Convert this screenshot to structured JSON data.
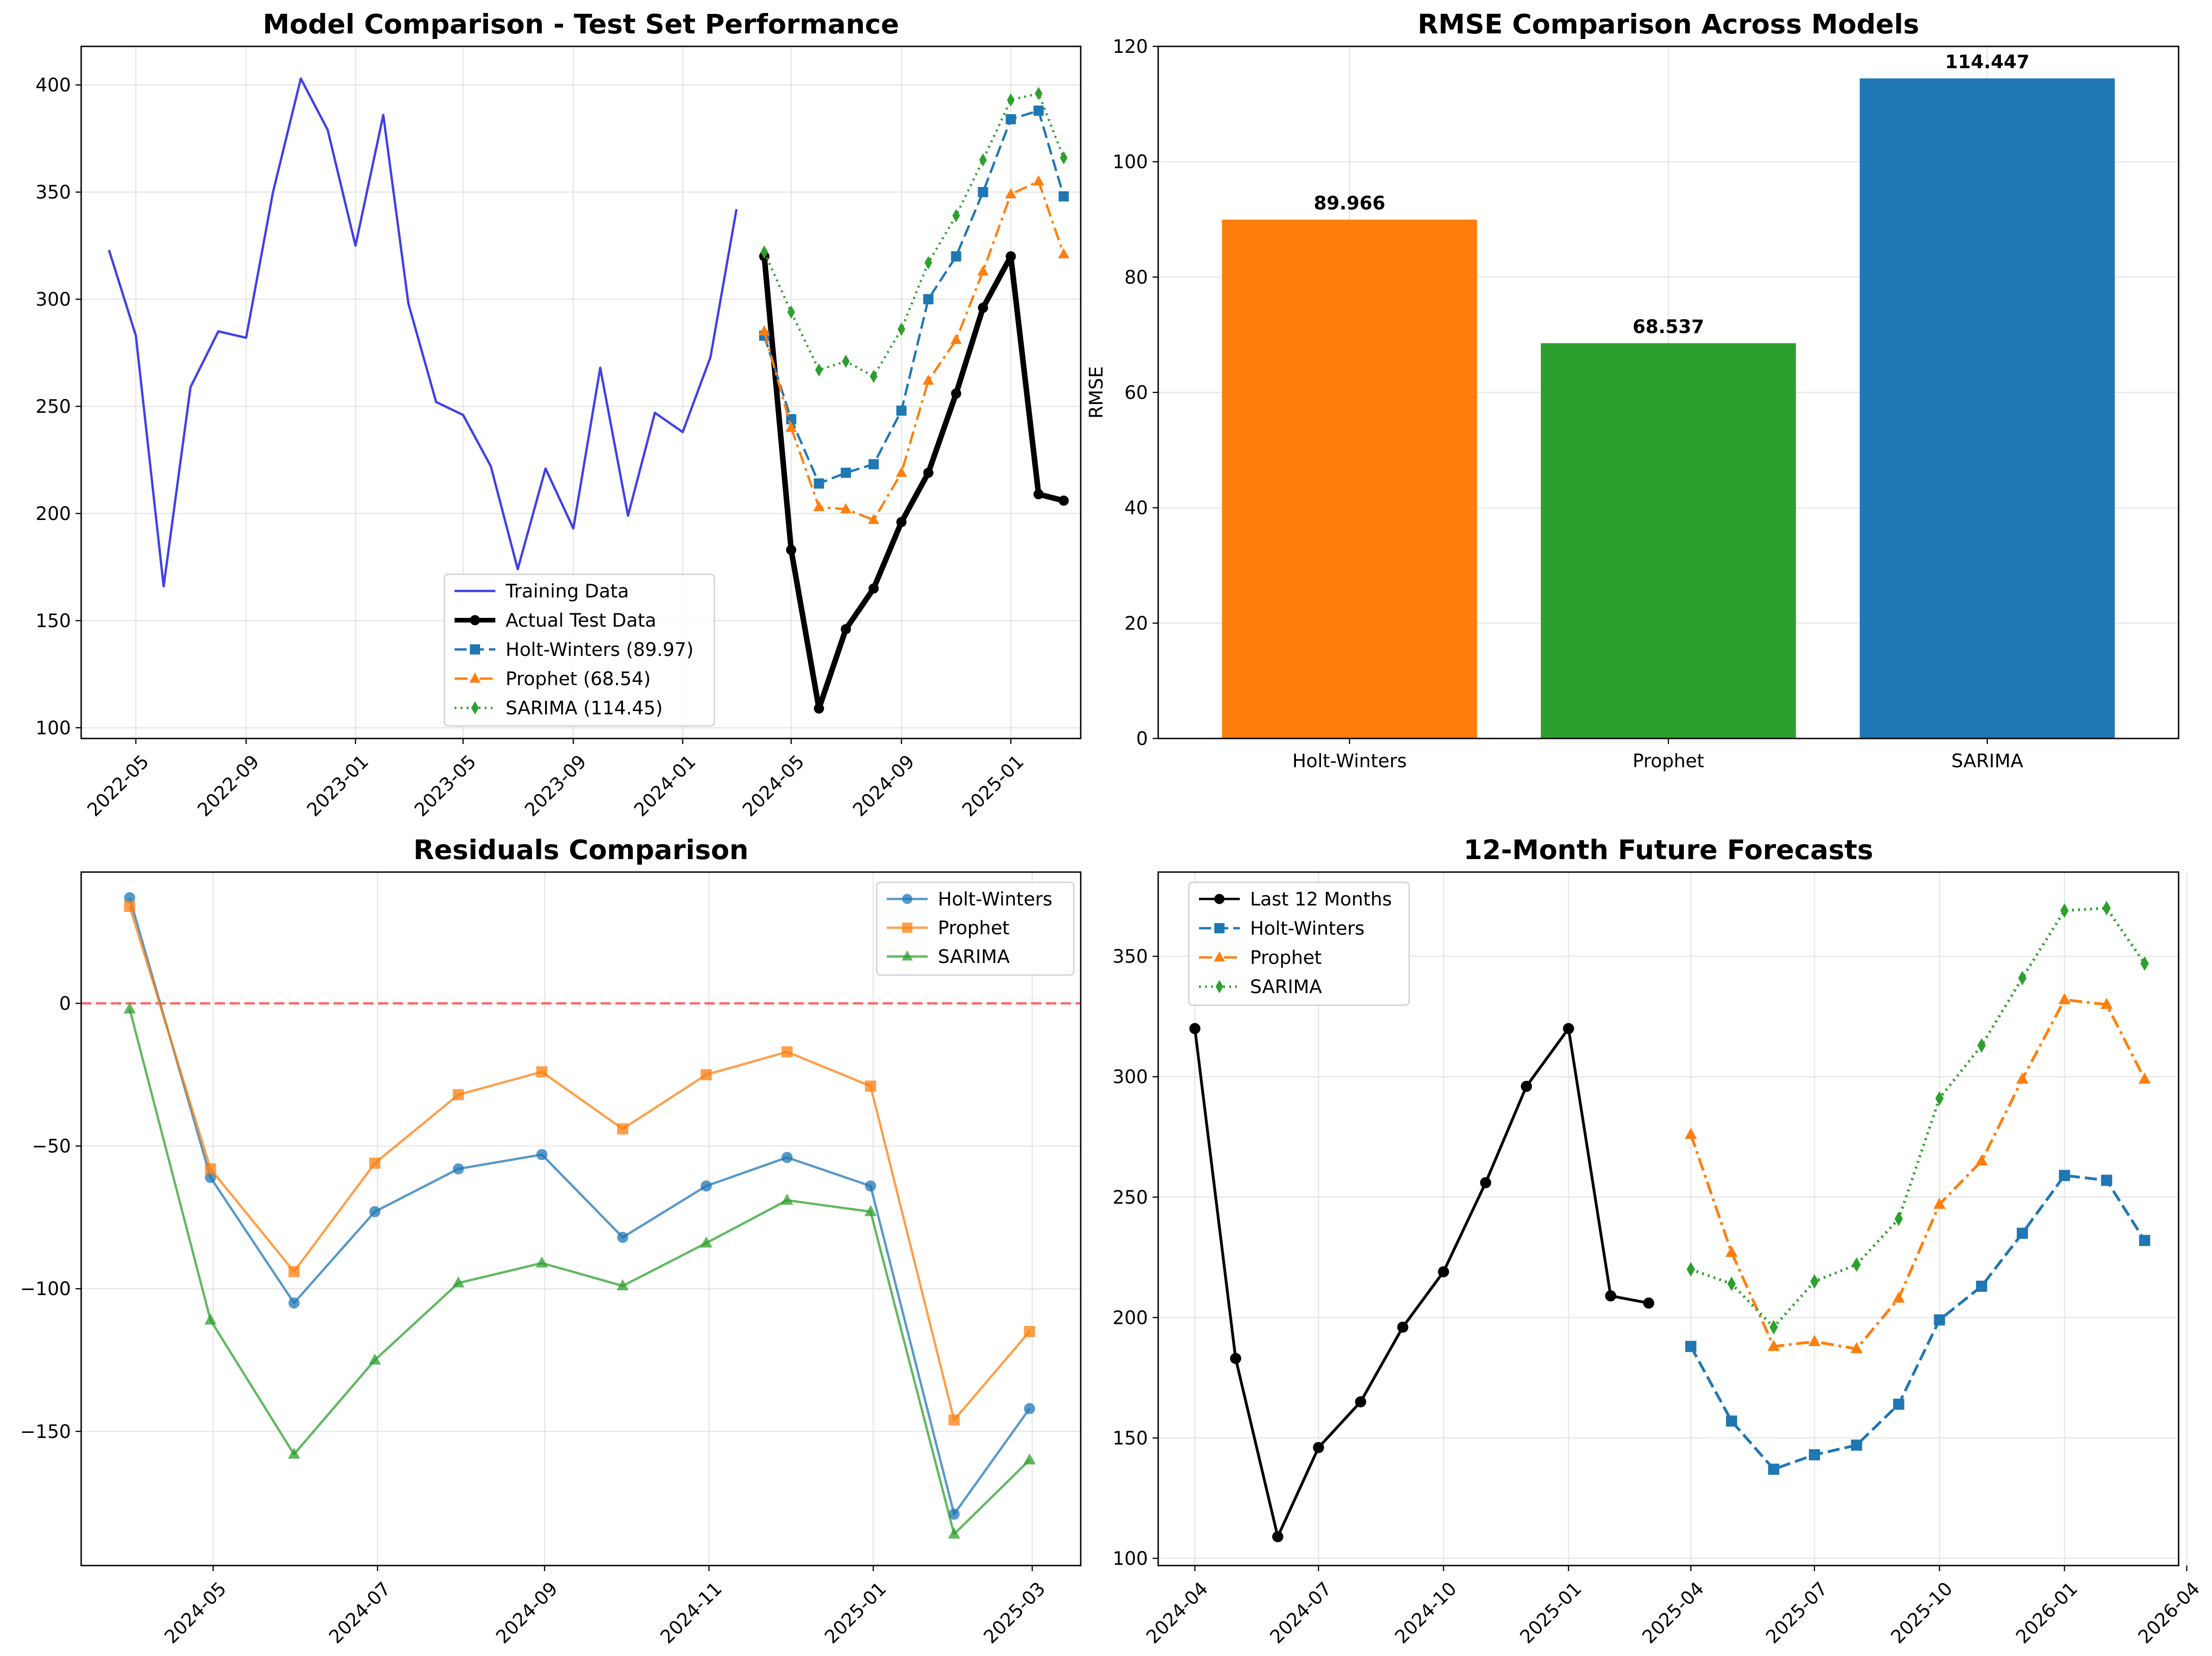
{
  "colors": {
    "training": "#4040e8",
    "actual": "#000000",
    "holt_winters": "#1f77b4",
    "prophet": "#ff7f0e",
    "sarima": "#2ca02c",
    "zero_line": "#ff4d4d",
    "grid": "#e6e6e6"
  },
  "chart_data": [
    {
      "type": "line",
      "title": "Model Comparison - Test Set Performance",
      "xlabel": "",
      "ylabel": "",
      "x_axis": "date",
      "xlim": [
        "2022-03-01",
        "2025-03-20"
      ],
      "ylim": [
        95,
        418
      ],
      "y_ticks": [
        100,
        150,
        200,
        250,
        300,
        350,
        400
      ],
      "x_ticks": [
        "2022-05",
        "2022-09",
        "2023-01",
        "2023-05",
        "2023-09",
        "2024-01",
        "2024-05",
        "2024-09",
        "2025-01"
      ],
      "grid": true,
      "legend_position": "lower-center",
      "series": [
        {
          "name": "Training Data",
          "style": "solid",
          "marker": "none",
          "color_key": "training",
          "x": [
            "2022-04",
            "2022-05",
            "2022-06",
            "2022-07",
            "2022-08",
            "2022-09",
            "2022-10",
            "2022-11",
            "2022-12",
            "2023-01",
            "2023-02",
            "2023-03",
            "2023-04",
            "2023-05",
            "2023-06",
            "2023-07",
            "2023-08",
            "2023-09",
            "2023-10",
            "2023-11",
            "2023-12",
            "2024-01",
            "2024-02",
            "2024-03"
          ],
          "values": [
            323,
            283,
            166,
            259,
            285,
            282,
            350,
            403,
            379,
            325,
            386,
            298,
            252,
            246,
            222,
            174,
            221,
            193,
            268,
            199,
            247,
            238,
            273,
            342
          ]
        },
        {
          "name": "Actual Test Data",
          "style": "solid-thick",
          "marker": "circle",
          "color_key": "actual",
          "x": [
            "2024-04",
            "2024-05",
            "2024-06",
            "2024-07",
            "2024-08",
            "2024-09",
            "2024-10",
            "2024-11",
            "2024-12",
            "2025-01",
            "2025-02",
            "2025-03"
          ],
          "values": [
            320,
            183,
            109,
            146,
            165,
            196,
            219,
            256,
            296,
            320,
            209,
            206
          ]
        },
        {
          "name": "Holt-Winters (89.97)",
          "style": "dashed",
          "marker": "square",
          "color_key": "holt_winters",
          "x": [
            "2024-04",
            "2024-05",
            "2024-06",
            "2024-07",
            "2024-08",
            "2024-09",
            "2024-10",
            "2024-11",
            "2024-12",
            "2025-01",
            "2025-02",
            "2025-03"
          ],
          "values": [
            283,
            244,
            214,
            219,
            223,
            248,
            300,
            320,
            350,
            384,
            388,
            348
          ]
        },
        {
          "name": "Prophet (68.54)",
          "style": "dashdot",
          "marker": "triangle",
          "color_key": "prophet",
          "x": [
            "2024-04",
            "2024-05",
            "2024-06",
            "2024-07",
            "2024-08",
            "2024-09",
            "2024-10",
            "2024-11",
            "2024-12",
            "2025-01",
            "2025-02",
            "2025-03"
          ],
          "values": [
            285,
            240,
            203,
            202,
            197,
            219,
            262,
            281,
            313,
            349,
            355,
            321
          ]
        },
        {
          "name": "SARIMA (114.45)",
          "style": "dotted",
          "marker": "diamond",
          "color_key": "sarima",
          "x": [
            "2024-04",
            "2024-05",
            "2024-06",
            "2024-07",
            "2024-08",
            "2024-09",
            "2024-10",
            "2024-11",
            "2024-12",
            "2025-01",
            "2025-02",
            "2025-03"
          ],
          "values": [
            322,
            294,
            267,
            271,
            264,
            286,
            317,
            339,
            365,
            393,
            396,
            366
          ]
        }
      ]
    },
    {
      "type": "bar",
      "title": "RMSE Comparison Across Models",
      "xlabel": "",
      "ylabel": "RMSE",
      "ylim": [
        0,
        120
      ],
      "y_ticks": [
        0,
        20,
        40,
        60,
        80,
        100,
        120
      ],
      "grid": true,
      "categories": [
        "Holt-Winters",
        "Prophet",
        "SARIMA"
      ],
      "values": [
        89.966,
        68.537,
        114.447
      ],
      "value_labels": [
        "89.966",
        "68.537",
        "114.447"
      ],
      "bar_color_keys": [
        "prophet",
        "sarima",
        "holt_winters"
      ]
    },
    {
      "type": "line",
      "title": "Residuals Comparison",
      "xlabel": "",
      "ylabel": "",
      "x_axis": "date",
      "xlim": [
        "2024-03-13",
        "2025-03-19"
      ],
      "ylim": [
        -197,
        46
      ],
      "y_ticks": [
        -150,
        -100,
        -50,
        0
      ],
      "x_ticks": [
        "2024-05",
        "2024-07",
        "2024-09",
        "2024-11",
        "2025-01",
        "2025-03"
      ],
      "grid": true,
      "legend_position": "upper-right",
      "reference_line": 0,
      "series": [
        {
          "name": "Holt-Winters",
          "marker": "circle",
          "color_key": "holt_winters",
          "x": [
            "2024-03-31",
            "2024-04-30",
            "2024-05-31",
            "2024-06-30",
            "2024-07-31",
            "2024-08-31",
            "2024-09-30",
            "2024-10-31",
            "2024-11-30",
            "2024-12-31",
            "2025-01-31",
            "2025-02-28"
          ],
          "values": [
            37,
            -61,
            -105,
            -73,
            -58,
            -53,
            -82,
            -64,
            -54,
            -64,
            -179,
            -142
          ]
        },
        {
          "name": "Prophet",
          "marker": "square",
          "color_key": "prophet",
          "x": [
            "2024-03-31",
            "2024-04-30",
            "2024-05-31",
            "2024-06-30",
            "2024-07-31",
            "2024-08-31",
            "2024-09-30",
            "2024-10-31",
            "2024-11-30",
            "2024-12-31",
            "2025-01-31",
            "2025-02-28"
          ],
          "values": [
            34,
            -58,
            -94,
            -56,
            -32,
            -24,
            -44,
            -25,
            -17,
            -29,
            -146,
            -115
          ]
        },
        {
          "name": "SARIMA",
          "marker": "triangle",
          "color_key": "sarima",
          "x": [
            "2024-03-31",
            "2024-04-30",
            "2024-05-31",
            "2024-06-30",
            "2024-07-31",
            "2024-08-31",
            "2024-09-30",
            "2024-10-31",
            "2024-11-30",
            "2024-12-31",
            "2025-01-31",
            "2025-02-28"
          ],
          "values": [
            -2,
            -111,
            -158,
            -125,
            -98,
            -91,
            -99,
            -84,
            -69,
            -73,
            -186,
            -160
          ]
        }
      ]
    },
    {
      "type": "line",
      "title": "12-Month Future Forecasts",
      "xlabel": "",
      "ylabel": "",
      "x_axis": "date",
      "xlim": [
        "2024-03-05",
        "2026-03-26"
      ],
      "ylim": [
        97,
        385
      ],
      "y_ticks": [
        100,
        150,
        200,
        250,
        300,
        350
      ],
      "x_ticks": [
        "2024-04",
        "2024-07",
        "2024-10",
        "2025-01",
        "2025-04",
        "2025-07",
        "2025-10",
        "2026-01",
        "2026-04"
      ],
      "grid": true,
      "legend_position": "upper-left",
      "series": [
        {
          "name": "Last 12 Months",
          "style": "solid",
          "marker": "circle",
          "color_key": "actual",
          "x": [
            "2024-04",
            "2024-05",
            "2024-06",
            "2024-07",
            "2024-08",
            "2024-09",
            "2024-10",
            "2024-11",
            "2024-12",
            "2025-01",
            "2025-02",
            "2025-03"
          ],
          "values": [
            320,
            183,
            109,
            146,
            165,
            196,
            219,
            256,
            296,
            320,
            209,
            206
          ]
        },
        {
          "name": "Holt-Winters",
          "style": "dashed",
          "marker": "square",
          "color_key": "holt_winters",
          "x": [
            "2025-04",
            "2025-05",
            "2025-06",
            "2025-07",
            "2025-08",
            "2025-09",
            "2025-10",
            "2025-11",
            "2025-12",
            "2026-01",
            "2026-02",
            "2026-03"
          ],
          "values": [
            188,
            157,
            137,
            143,
            147,
            164,
            199,
            213,
            235,
            259,
            257,
            232
          ]
        },
        {
          "name": "Prophet",
          "style": "dashdot",
          "marker": "triangle",
          "color_key": "prophet",
          "x": [
            "2025-04",
            "2025-05",
            "2025-06",
            "2025-07",
            "2025-08",
            "2025-09",
            "2025-10",
            "2025-11",
            "2025-12",
            "2026-01",
            "2026-02",
            "2026-03"
          ],
          "values": [
            276,
            227,
            188,
            190,
            187,
            208,
            247,
            265,
            299,
            332,
            330,
            299
          ]
        },
        {
          "name": "SARIMA",
          "style": "dotted",
          "marker": "diamond",
          "color_key": "sarima",
          "x": [
            "2025-04",
            "2025-05",
            "2025-06",
            "2025-07",
            "2025-08",
            "2025-09",
            "2025-10",
            "2025-11",
            "2025-12",
            "2026-01",
            "2026-02",
            "2026-03"
          ],
          "values": [
            220,
            214,
            196,
            215,
            222,
            241,
            291,
            313,
            341,
            369,
            370,
            347
          ]
        }
      ]
    }
  ]
}
